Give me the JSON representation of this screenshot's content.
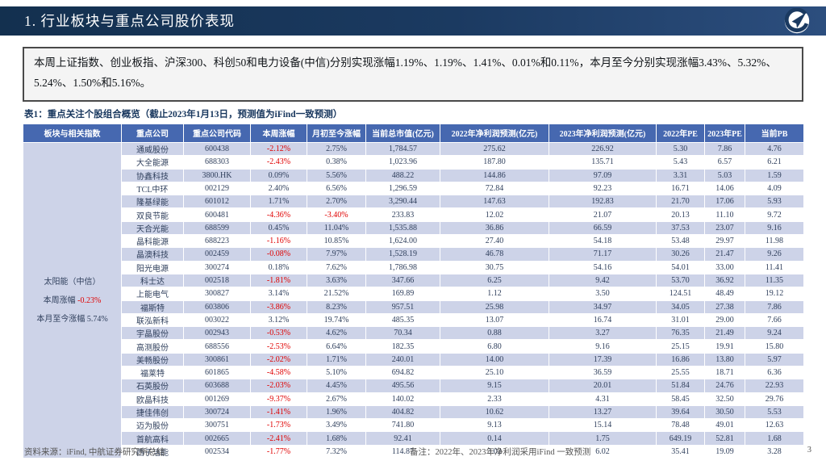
{
  "header": {
    "title": "1. 行业板块与重点公司股价表现",
    "logo_text": "AVIC"
  },
  "summary": {
    "text": "本周上证指数、创业板指、沪深300、科创50和电力设备(中信)分别实现涨幅1.19%、1.19%、1.41%、0.01%和0.11%，本月至今分别实现涨幅3.43%、5.32%、5.24%、1.50%和5.16%。"
  },
  "table": {
    "title": "表1：重点关注个股组合概览（截止2023年1月13日，预测值为iFind一致预测）",
    "columns": [
      "板块与相关指数",
      "重点公司",
      "重点公司代码",
      "本周涨幅",
      "月初至今涨幅",
      "当前总市值(亿元)",
      "2022年净利润预测(亿元)",
      "2023年净利润预测(亿元)",
      "2022年PE",
      "2023年PE",
      "当前PB"
    ],
    "sector": {
      "name": "太阳能（中信）",
      "week_label": "本周涨幅",
      "week_value": "-0.23%",
      "mtd_label": "本月至今涨幅",
      "mtd_value": "5.74%"
    },
    "rows": [
      {
        "company": "通威股份",
        "code": "600438",
        "week_chg": "-2.12%",
        "mtd_chg": "2.75%",
        "mkt_cap": "1,784.57",
        "np_2022": "275.62",
        "np_2023": "226.92",
        "pe_2022": "5.30",
        "pe_2023": "7.86",
        "pb": "4.76"
      },
      {
        "company": "大全能源",
        "code": "688303",
        "week_chg": "-2.43%",
        "mtd_chg": "0.38%",
        "mkt_cap": "1,023.96",
        "np_2022": "187.80",
        "np_2023": "135.71",
        "pe_2022": "5.43",
        "pe_2023": "6.57",
        "pb": "6.21"
      },
      {
        "company": "协鑫科技",
        "code": "3800.HK",
        "week_chg": "0.09%",
        "mtd_chg": "5.56%",
        "mkt_cap": "488.22",
        "np_2022": "144.86",
        "np_2023": "97.09",
        "pe_2022": "3.31",
        "pe_2023": "5.03",
        "pb": "1.59"
      },
      {
        "company": "TCL中环",
        "code": "002129",
        "week_chg": "2.40%",
        "mtd_chg": "6.56%",
        "mkt_cap": "1,296.59",
        "np_2022": "72.84",
        "np_2023": "92.23",
        "pe_2022": "16.71",
        "pe_2023": "14.06",
        "pb": "4.09"
      },
      {
        "company": "隆基绿能",
        "code": "601012",
        "week_chg": "1.71%",
        "mtd_chg": "2.70%",
        "mkt_cap": "3,290.44",
        "np_2022": "147.63",
        "np_2023": "192.83",
        "pe_2022": "21.70",
        "pe_2023": "17.06",
        "pb": "5.93"
      },
      {
        "company": "双良节能",
        "code": "600481",
        "week_chg": "-4.36%",
        "mtd_chg": "-3.40%",
        "mkt_cap": "233.83",
        "np_2022": "12.02",
        "np_2023": "21.07",
        "pe_2022": "20.13",
        "pe_2023": "11.10",
        "pb": "9.72"
      },
      {
        "company": "天合光能",
        "code": "688599",
        "week_chg": "0.45%",
        "mtd_chg": "11.04%",
        "mkt_cap": "1,535.88",
        "np_2022": "36.86",
        "np_2023": "66.59",
        "pe_2022": "37.53",
        "pe_2023": "23.07",
        "pb": "9.16"
      },
      {
        "company": "晶科能源",
        "code": "688223",
        "week_chg": "-1.16%",
        "mtd_chg": "10.85%",
        "mkt_cap": "1,624.00",
        "np_2022": "27.40",
        "np_2023": "54.18",
        "pe_2022": "53.48",
        "pe_2023": "29.97",
        "pb": "11.98"
      },
      {
        "company": "晶澳科技",
        "code": "002459",
        "week_chg": "-0.08%",
        "mtd_chg": "7.97%",
        "mkt_cap": "1,528.19",
        "np_2022": "46.78",
        "np_2023": "71.17",
        "pe_2022": "30.26",
        "pe_2023": "21.47",
        "pb": "9.26"
      },
      {
        "company": "阳光电源",
        "code": "300274",
        "week_chg": "0.18%",
        "mtd_chg": "7.62%",
        "mkt_cap": "1,786.98",
        "np_2022": "30.75",
        "np_2023": "54.16",
        "pe_2022": "54.01",
        "pe_2023": "33.00",
        "pb": "11.41"
      },
      {
        "company": "科士达",
        "code": "002518",
        "week_chg": "-1.81%",
        "mtd_chg": "3.63%",
        "mkt_cap": "347.66",
        "np_2022": "6.25",
        "np_2023": "9.42",
        "pe_2022": "53.70",
        "pe_2023": "36.92",
        "pb": "11.35"
      },
      {
        "company": "上能电气",
        "code": "300827",
        "week_chg": "3.14%",
        "mtd_chg": "21.52%",
        "mkt_cap": "169.89",
        "np_2022": "1.12",
        "np_2023": "3.50",
        "pe_2022": "124.51",
        "pe_2023": "48.49",
        "pb": "19.12"
      },
      {
        "company": "福斯特",
        "code": "603806",
        "week_chg": "-3.86%",
        "mtd_chg": "8.23%",
        "mkt_cap": "957.51",
        "np_2022": "25.98",
        "np_2023": "34.97",
        "pe_2022": "34.05",
        "pe_2023": "27.38",
        "pb": "7.86"
      },
      {
        "company": "联泓新科",
        "code": "003022",
        "week_chg": "3.12%",
        "mtd_chg": "19.74%",
        "mkt_cap": "485.35",
        "np_2022": "13.07",
        "np_2023": "16.74",
        "pe_2022": "31.01",
        "pe_2023": "29.00",
        "pb": "7.66"
      },
      {
        "company": "宇晶股份",
        "code": "002943",
        "week_chg": "-0.53%",
        "mtd_chg": "4.62%",
        "mkt_cap": "70.34",
        "np_2022": "0.88",
        "np_2023": "3.27",
        "pe_2022": "76.35",
        "pe_2023": "21.49",
        "pb": "9.24"
      },
      {
        "company": "高测股份",
        "code": "688556",
        "week_chg": "-2.53%",
        "mtd_chg": "6.64%",
        "mkt_cap": "182.35",
        "np_2022": "6.80",
        "np_2023": "9.16",
        "pe_2022": "25.15",
        "pe_2023": "19.91",
        "pb": "15.80"
      },
      {
        "company": "美畅股份",
        "code": "300861",
        "week_chg": "-2.02%",
        "mtd_chg": "1.71%",
        "mkt_cap": "240.01",
        "np_2022": "14.00",
        "np_2023": "17.39",
        "pe_2022": "16.86",
        "pe_2023": "13.80",
        "pb": "5.97"
      },
      {
        "company": "福莱特",
        "code": "601865",
        "week_chg": "-4.58%",
        "mtd_chg": "5.10%",
        "mkt_cap": "694.82",
        "np_2022": "25.10",
        "np_2023": "36.59",
        "pe_2022": "25.55",
        "pe_2023": "18.71",
        "pb": "6.36"
      },
      {
        "company": "石英股份",
        "code": "603688",
        "week_chg": "-2.03%",
        "mtd_chg": "4.45%",
        "mkt_cap": "495.56",
        "np_2022": "9.15",
        "np_2023": "20.01",
        "pe_2022": "51.84",
        "pe_2023": "24.76",
        "pb": "22.93"
      },
      {
        "company": "欧晶科技",
        "code": "001269",
        "week_chg": "-9.37%",
        "mtd_chg": "2.67%",
        "mkt_cap": "140.02",
        "np_2022": "2.33",
        "np_2023": "4.31",
        "pe_2022": "58.45",
        "pe_2023": "32.50",
        "pb": "29.76"
      },
      {
        "company": "捷佳伟创",
        "code": "300724",
        "week_chg": "-1.41%",
        "mtd_chg": "1.96%",
        "mkt_cap": "404.82",
        "np_2022": "10.62",
        "np_2023": "13.27",
        "pe_2022": "39.64",
        "pe_2023": "30.50",
        "pb": "5.53"
      },
      {
        "company": "迈为股份",
        "code": "300751",
        "week_chg": "-1.73%",
        "mtd_chg": "3.49%",
        "mkt_cap": "741.80",
        "np_2022": "9.13",
        "np_2023": "15.14",
        "pe_2022": "78.48",
        "pe_2023": "49.01",
        "pb": "12.63"
      },
      {
        "company": "首航高科",
        "code": "002665",
        "week_chg": "-2.41%",
        "mtd_chg": "1.68%",
        "mkt_cap": "92.41",
        "np_2022": "0.14",
        "np_2023": "1.75",
        "pe_2022": "649.19",
        "pe_2023": "52.81",
        "pb": "1.68"
      },
      {
        "company": "西子洁能",
        "code": "002534",
        "week_chg": "-1.77%",
        "mtd_chg": "7.32%",
        "mkt_cap": "114.87",
        "np_2022": "3.02",
        "np_2023": "6.02",
        "pe_2022": "35.41",
        "pe_2023": "19.09",
        "pb": "3.28"
      }
    ]
  },
  "footer": {
    "source": "资料来源：iFind, 中航证券研究所总结",
    "note": "备注：2022年、2023年净利润采用iFind 一致预测",
    "page": "3"
  },
  "colors": {
    "bar_navy": "#1b3a61",
    "table_header_blue": "#4668b0",
    "row_shade": "#cdd3e8",
    "negative_red": "#e00000",
    "text_dark": "#2f3f5c"
  }
}
